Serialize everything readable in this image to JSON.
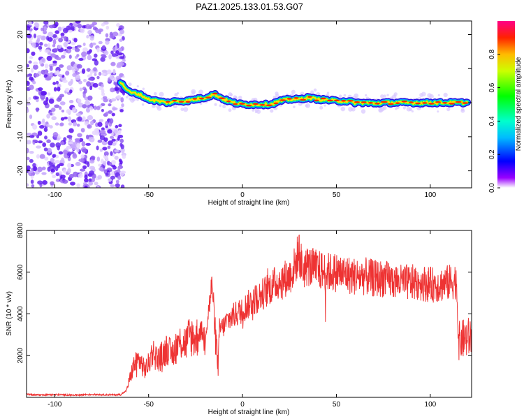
{
  "title": "PAZ1.2025.133.01.53.G07",
  "chart_data": [
    {
      "type": "heatmap",
      "name": "spectrogram",
      "xlabel": "Height of straight line (km)",
      "ylabel": "Frequency (Hz)",
      "xlim": [
        -115,
        122
      ],
      "ylim": [
        -25,
        24
      ],
      "xticks": [
        -100,
        -50,
        0,
        50,
        100
      ],
      "xtick_labels": [
        "-100",
        "-50",
        "0",
        "50",
        "100"
      ],
      "yticks": [
        -20,
        -10,
        0,
        10,
        20
      ],
      "ytick_labels": [
        "-20",
        "-10",
        "0",
        "10",
        "20"
      ],
      "noise_region_x": [
        -115,
        -65
      ],
      "signal_track": {
        "x": [
          -65,
          -60,
          -55,
          -50,
          -45,
          -40,
          -35,
          -30,
          -25,
          -20,
          -15,
          -10,
          -5,
          0,
          5,
          10,
          15,
          20,
          25,
          30,
          35,
          40,
          45,
          50,
          55,
          60,
          65,
          70,
          75,
          80,
          85,
          90,
          95,
          100,
          105,
          110,
          115,
          120
        ],
        "frequency": [
          6,
          3,
          2.5,
          1,
          0.5,
          0,
          0.5,
          0.5,
          1,
          1.5,
          2.5,
          1,
          0,
          -0.5,
          -0.5,
          -0.5,
          -0.5,
          0.5,
          1,
          1,
          1.5,
          1,
          0.8,
          0.5,
          0.5,
          0,
          0,
          -0.2,
          0,
          0,
          0,
          0,
          0,
          0,
          0,
          0,
          0,
          0
        ]
      },
      "colorbar": {
        "label": "Normalized spectral amplitude",
        "range": [
          0.0,
          1.0
        ],
        "ticks": [
          0.0,
          0.2,
          0.4,
          0.6,
          0.8
        ],
        "tick_labels": [
          "0.0",
          "0.2",
          "0.4",
          "0.6",
          "0.8"
        ]
      }
    },
    {
      "type": "line",
      "name": "snr",
      "xlabel": "Height of straight line (km)",
      "ylabel": "SNR (10 * v/v)",
      "xlim": [
        -115,
        122
      ],
      "ylim": [
        0,
        8000
      ],
      "xticks": [
        -100,
        -50,
        0,
        50,
        100
      ],
      "xtick_labels": [
        "-100",
        "-50",
        "0",
        "50",
        "100"
      ],
      "yticks": [
        2000,
        4000,
        6000,
        8000
      ],
      "ytick_labels": [
        "2000",
        "4000",
        "6000",
        "8000"
      ],
      "color": "#ee3333",
      "series": [
        {
          "name": "SNR",
          "x": [
            -115,
            -110,
            -100,
            -90,
            -80,
            -70,
            -65,
            -62,
            -60,
            -58,
            -55,
            -52,
            -50,
            -48,
            -45,
            -42,
            -40,
            -38,
            -35,
            -32,
            -30,
            -28,
            -25,
            -22,
            -20,
            -18,
            -16,
            -15,
            -13,
            -12,
            -10,
            -8,
            -5,
            0,
            5,
            10,
            15,
            20,
            25,
            28,
            30,
            32,
            35,
            40,
            45,
            50,
            55,
            60,
            65,
            70,
            75,
            78,
            80,
            85,
            90,
            95,
            100,
            105,
            110,
            114,
            115,
            118,
            122
          ],
          "y": [
            150,
            120,
            130,
            110,
            140,
            120,
            130,
            300,
            900,
            1500,
            1800,
            1300,
            1600,
            2200,
            1800,
            2100,
            2400,
            2000,
            2500,
            2700,
            2600,
            3000,
            2800,
            3200,
            2900,
            4200,
            5500,
            3600,
            1500,
            3300,
            3400,
            3700,
            3900,
            4200,
            4600,
            4900,
            5300,
            5600,
            5800,
            6300,
            7000,
            6100,
            6300,
            6100,
            6000,
            6000,
            5900,
            5800,
            5800,
            5700,
            5700,
            5600,
            5600,
            5500,
            5500,
            5500,
            5400,
            5400,
            5500,
            5600,
            2700,
            2800,
            2900
          ]
        }
      ]
    }
  ]
}
